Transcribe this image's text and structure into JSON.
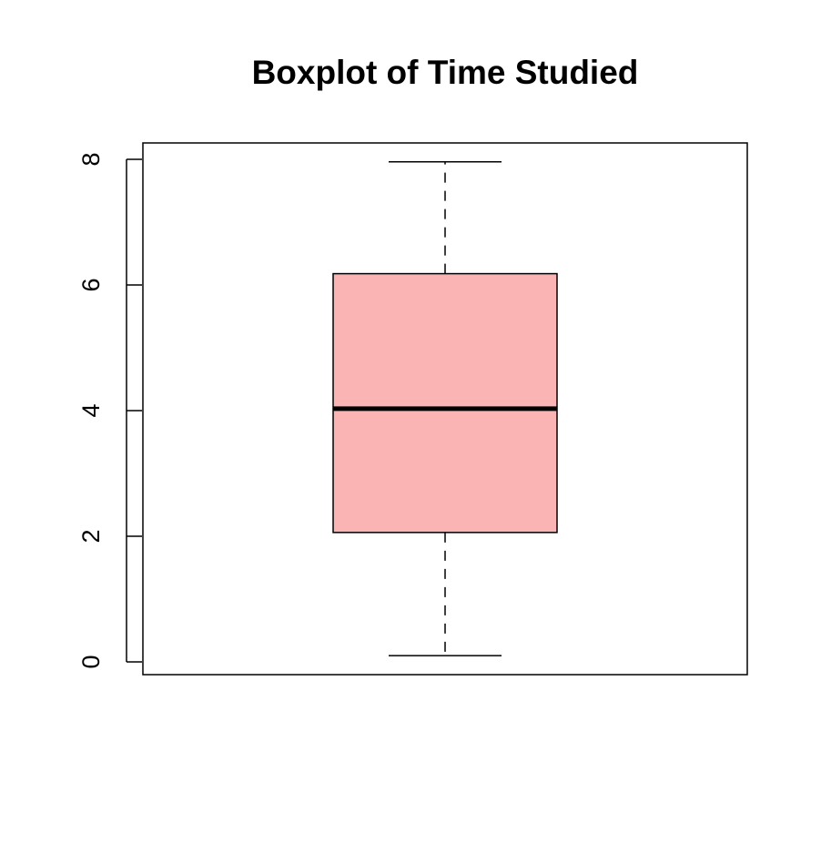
{
  "chart_data": {
    "type": "boxplot",
    "title": "Boxplot of Time Studied",
    "xlabel": "",
    "ylabel": "",
    "ylim": [
      0,
      8
    ],
    "yticks": [
      0,
      2,
      4,
      6,
      8
    ],
    "ytick_labels": [
      "0",
      "2",
      "4",
      "6",
      "8"
    ],
    "grid": false,
    "boxes": [
      {
        "min": 0.1,
        "q1": 2.06,
        "median": 4.03,
        "q3": 6.18,
        "max": 7.96
      }
    ],
    "colors": {
      "box_fill": "#fbb4b4",
      "stroke": "#000000"
    }
  }
}
